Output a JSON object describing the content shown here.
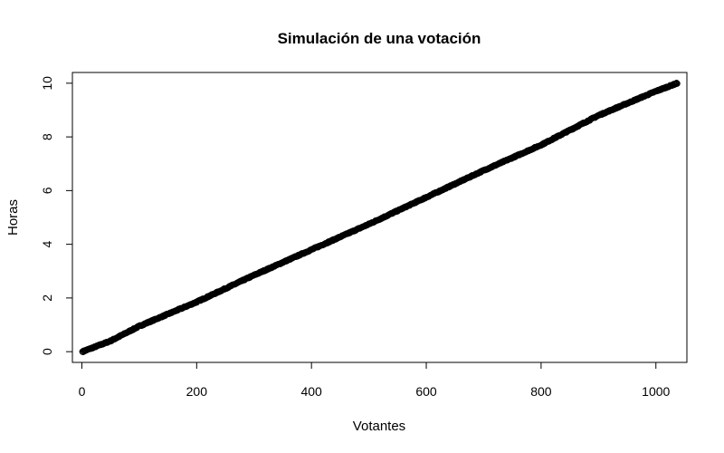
{
  "chart_data": {
    "type": "scatter",
    "title": "Simulación de una votación",
    "xlabel": "Votantes",
    "ylabel": "Horas",
    "xlim": [
      -16.5,
      1054
    ],
    "ylim": [
      -0.4,
      10.4
    ],
    "xticks": [
      0,
      200,
      400,
      600,
      800,
      1000
    ],
    "yticks": [
      0,
      2,
      4,
      6,
      8,
      10
    ],
    "grid": false,
    "marker": "open-circle",
    "n_points": 1037,
    "trend_keypoints": [
      [
        1,
        0.0
      ],
      [
        50,
        0.4
      ],
      [
        100,
        0.95
      ],
      [
        200,
        1.85
      ],
      [
        300,
        2.85
      ],
      [
        400,
        3.8
      ],
      [
        500,
        4.75
      ],
      [
        600,
        5.75
      ],
      [
        700,
        6.75
      ],
      [
        800,
        7.7
      ],
      [
        900,
        8.8
      ],
      [
        1000,
        9.7
      ],
      [
        1037,
        10.0
      ]
    ],
    "colors": {
      "points": "#000000",
      "axes": "#000000",
      "background": "#ffffff"
    }
  }
}
